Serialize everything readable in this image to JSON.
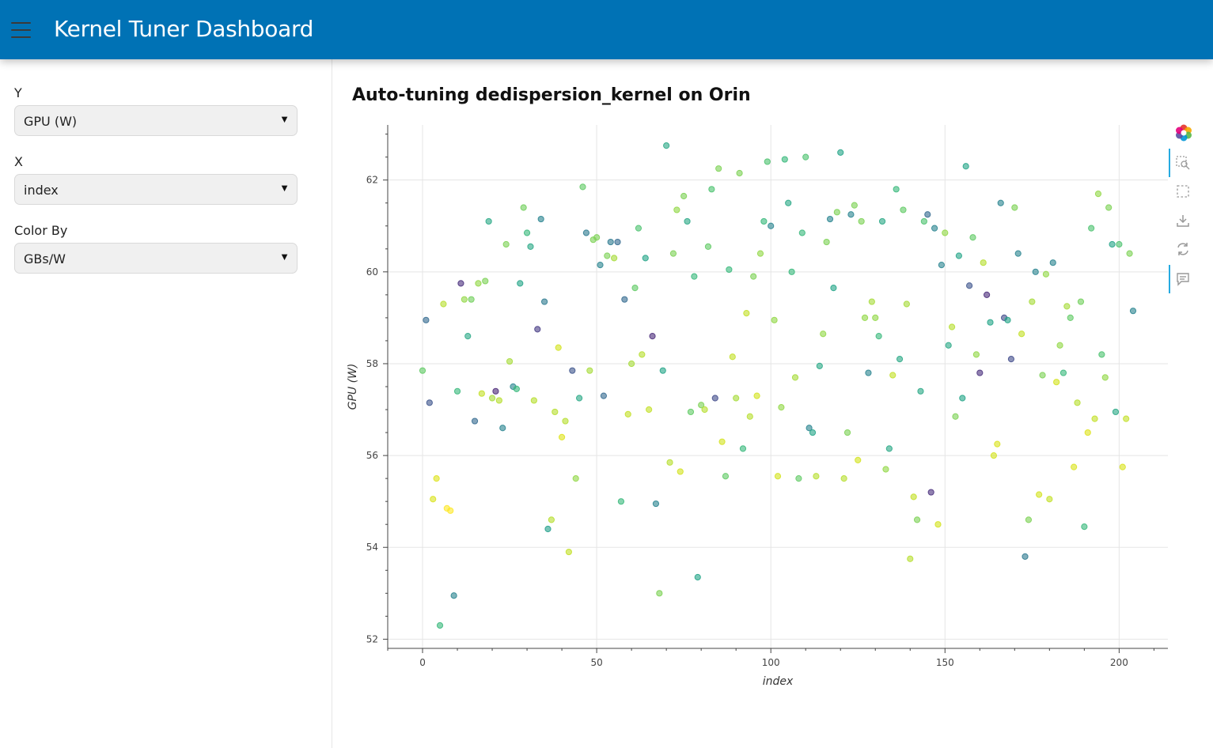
{
  "app": {
    "title": "Kernel Tuner Dashboard"
  },
  "sidebar": {
    "controls": [
      {
        "label": "Y",
        "value": "GPU (W)"
      },
      {
        "label": "X",
        "value": "index"
      },
      {
        "label": "Color By",
        "value": "GBs/W"
      }
    ]
  },
  "toolbar": {
    "tools": [
      "bokeh-logo-icon",
      "box-zoom-icon",
      "box-select-icon",
      "save-icon",
      "reset-icon",
      "hover-icon"
    ]
  },
  "chart_data": {
    "type": "scatter",
    "title": "Auto-tuning dedispersion_kernel on Orin",
    "xlabel": "index",
    "ylabel": "GPU (W)",
    "xlim": [
      -10,
      214
    ],
    "ylim": [
      51.8,
      63.2
    ],
    "xticks": [
      0,
      50,
      100,
      150,
      200
    ],
    "yticks": [
      52,
      54,
      56,
      58,
      60,
      62
    ],
    "grid": true,
    "colormap": "viridis",
    "color_by": "GBs/W",
    "points": [
      [
        0,
        57.85,
        "#5ec962"
      ],
      [
        1,
        58.95,
        "#31688e"
      ],
      [
        2,
        57.15,
        "#3b528b"
      ],
      [
        3,
        55.05,
        "#d8e219"
      ],
      [
        4,
        55.5,
        "#dde318"
      ],
      [
        5,
        52.3,
        "#35b779"
      ],
      [
        6,
        59.3,
        "#b5de2b"
      ],
      [
        7,
        54.85,
        "#fde725"
      ],
      [
        8,
        54.8,
        "#fde725"
      ],
      [
        9,
        52.95,
        "#26828e"
      ],
      [
        10,
        57.4,
        "#35b779"
      ],
      [
        11,
        59.75,
        "#472d7b"
      ],
      [
        12,
        59.4,
        "#90d743"
      ],
      [
        13,
        58.6,
        "#26a784"
      ],
      [
        14,
        59.4,
        "#6ece58"
      ],
      [
        15,
        56.75,
        "#31688e"
      ],
      [
        16,
        59.75,
        "#90d743"
      ],
      [
        17,
        57.35,
        "#c2df23"
      ],
      [
        18,
        59.8,
        "#7ad151"
      ],
      [
        19,
        61.1,
        "#26a784"
      ],
      [
        20,
        57.25,
        "#a5db36"
      ],
      [
        21,
        57.4,
        "#482475"
      ],
      [
        22,
        57.2,
        "#b5de2b"
      ],
      [
        23,
        56.6,
        "#26828e"
      ],
      [
        24,
        60.6,
        "#7ad151"
      ],
      [
        25,
        58.05,
        "#a5db36"
      ],
      [
        26,
        57.5,
        "#26828e"
      ],
      [
        27,
        57.45,
        "#35b779"
      ],
      [
        28,
        59.75,
        "#20a386"
      ],
      [
        29,
        61.4,
        "#6ece58"
      ],
      [
        30,
        60.85,
        "#35b779"
      ],
      [
        31,
        60.55,
        "#26a784"
      ],
      [
        32,
        57.2,
        "#b5de2b"
      ],
      [
        33,
        58.75,
        "#443983"
      ],
      [
        34,
        61.15,
        "#26828e"
      ],
      [
        35,
        59.35,
        "#2a788e"
      ],
      [
        36,
        54.4,
        "#1f9e89"
      ],
      [
        37,
        54.6,
        "#b5de2b"
      ],
      [
        38,
        56.95,
        "#b5de2b"
      ],
      [
        39,
        58.35,
        "#d2e21b"
      ],
      [
        40,
        56.4,
        "#dde318"
      ],
      [
        41,
        56.75,
        "#b5de2b"
      ],
      [
        42,
        53.9,
        "#c2df23"
      ],
      [
        43,
        57.85,
        "#3b528b"
      ],
      [
        44,
        55.5,
        "#90d743"
      ],
      [
        45,
        57.25,
        "#26a784"
      ],
      [
        46,
        61.85,
        "#5ec962"
      ],
      [
        47,
        60.85,
        "#2a788e"
      ],
      [
        48,
        57.85,
        "#a5db36"
      ],
      [
        49,
        60.7,
        "#7ad151"
      ],
      [
        50,
        60.75,
        "#7ad151"
      ],
      [
        51,
        60.15,
        "#26828e"
      ],
      [
        52,
        57.3,
        "#31688e"
      ],
      [
        53,
        60.35,
        "#7ad151"
      ],
      [
        54,
        60.65,
        "#2a788e"
      ],
      [
        55,
        60.3,
        "#a5db36"
      ],
      [
        56,
        60.65,
        "#31688e"
      ],
      [
        57,
        55.0,
        "#35b779"
      ],
      [
        58,
        59.4,
        "#31688e"
      ],
      [
        59,
        56.9,
        "#c2df23"
      ],
      [
        60,
        58.0,
        "#a5db36"
      ],
      [
        61,
        59.65,
        "#5ec962"
      ],
      [
        62,
        60.95,
        "#4ac16d"
      ],
      [
        63,
        58.2,
        "#b5de2b"
      ],
      [
        64,
        60.3,
        "#20a386"
      ],
      [
        65,
        57.0,
        "#c2df23"
      ],
      [
        66,
        58.6,
        "#482878"
      ],
      [
        67,
        54.95,
        "#26828e"
      ],
      [
        68,
        53.0,
        "#7ad151"
      ],
      [
        69,
        57.85,
        "#20a386"
      ],
      [
        70,
        62.75,
        "#26a784"
      ],
      [
        71,
        55.85,
        "#b5de2b"
      ],
      [
        72,
        60.4,
        "#7ad151"
      ],
      [
        73,
        61.35,
        "#90d743"
      ],
      [
        74,
        55.65,
        "#d2e21b"
      ],
      [
        75,
        61.65,
        "#7ad151"
      ],
      [
        76,
        61.1,
        "#26a784"
      ],
      [
        77,
        56.95,
        "#5ec962"
      ],
      [
        78,
        59.9,
        "#35b779"
      ],
      [
        79,
        53.35,
        "#20a386"
      ],
      [
        80,
        57.1,
        "#7ad151"
      ],
      [
        81,
        57.0,
        "#b5de2b"
      ],
      [
        82,
        60.55,
        "#5ec962"
      ],
      [
        83,
        61.8,
        "#4ac16d"
      ],
      [
        84,
        57.25,
        "#3e4989"
      ],
      [
        85,
        62.25,
        "#7ad151"
      ],
      [
        86,
        56.3,
        "#d2e21b"
      ],
      [
        87,
        55.55,
        "#5ec962"
      ],
      [
        88,
        60.05,
        "#35b779"
      ],
      [
        89,
        58.15,
        "#c2df23"
      ],
      [
        90,
        57.25,
        "#a5db36"
      ],
      [
        91,
        62.15,
        "#7ad151"
      ],
      [
        92,
        56.15,
        "#35b779"
      ],
      [
        93,
        59.1,
        "#c2df23"
      ],
      [
        94,
        56.85,
        "#b5de2b"
      ],
      [
        95,
        59.9,
        "#7ad151"
      ],
      [
        96,
        57.3,
        "#d2e21b"
      ],
      [
        97,
        60.4,
        "#90d743"
      ],
      [
        98,
        61.1,
        "#35b779"
      ],
      [
        99,
        62.4,
        "#4ac16d"
      ],
      [
        100,
        61.0,
        "#26828e"
      ],
      [
        101,
        58.95,
        "#90d743"
      ],
      [
        102,
        55.55,
        "#d2e21b"
      ],
      [
        103,
        57.05,
        "#90d743"
      ],
      [
        104,
        62.45,
        "#35b779"
      ],
      [
        105,
        61.5,
        "#26a784"
      ],
      [
        106,
        60.0,
        "#35b779"
      ],
      [
        107,
        57.7,
        "#a5db36"
      ],
      [
        108,
        55.5,
        "#5ec962"
      ],
      [
        109,
        60.85,
        "#35b779"
      ],
      [
        110,
        62.5,
        "#4ac16d"
      ],
      [
        111,
        56.6,
        "#26828e"
      ],
      [
        112,
        56.5,
        "#20a386"
      ],
      [
        113,
        55.55,
        "#b5de2b"
      ],
      [
        114,
        57.95,
        "#26a784"
      ],
      [
        115,
        58.65,
        "#90d743"
      ],
      [
        116,
        60.65,
        "#7ad151"
      ],
      [
        117,
        61.15,
        "#26828e"
      ],
      [
        118,
        59.65,
        "#20a386"
      ],
      [
        119,
        61.3,
        "#7ad151"
      ],
      [
        120,
        62.6,
        "#20a386"
      ],
      [
        121,
        55.5,
        "#b5de2b"
      ],
      [
        122,
        56.5,
        "#7ad151"
      ],
      [
        123,
        61.25,
        "#26828e"
      ],
      [
        124,
        61.45,
        "#7ad151"
      ],
      [
        125,
        55.9,
        "#d2e21b"
      ],
      [
        126,
        61.1,
        "#7ad151"
      ],
      [
        127,
        59.0,
        "#90d743"
      ],
      [
        128,
        57.8,
        "#26828e"
      ],
      [
        129,
        59.35,
        "#a5db36"
      ],
      [
        130,
        59.0,
        "#90d743"
      ],
      [
        131,
        58.6,
        "#35b779"
      ],
      [
        132,
        61.1,
        "#26a784"
      ],
      [
        133,
        55.7,
        "#90d743"
      ],
      [
        134,
        56.15,
        "#26a784"
      ],
      [
        135,
        57.75,
        "#c2df23"
      ],
      [
        136,
        61.8,
        "#35b779"
      ],
      [
        137,
        58.1,
        "#26a784"
      ],
      [
        138,
        61.35,
        "#5ec962"
      ],
      [
        139,
        59.3,
        "#a5db36"
      ],
      [
        140,
        53.75,
        "#b5de2b"
      ],
      [
        141,
        55.1,
        "#c2df23"
      ],
      [
        142,
        54.6,
        "#7ad151"
      ],
      [
        143,
        57.4,
        "#26a784"
      ],
      [
        144,
        61.1,
        "#4ac16d"
      ],
      [
        145,
        61.25,
        "#31688e"
      ],
      [
        146,
        55.2,
        "#472d7b"
      ],
      [
        147,
        60.95,
        "#26828e"
      ],
      [
        148,
        54.5,
        "#d2e21b"
      ],
      [
        149,
        60.15,
        "#26828e"
      ],
      [
        150,
        60.85,
        "#90d743"
      ],
      [
        151,
        58.4,
        "#26a784"
      ],
      [
        152,
        58.8,
        "#b5de2b"
      ],
      [
        153,
        56.85,
        "#7ad151"
      ],
      [
        154,
        60.35,
        "#20a386"
      ],
      [
        155,
        57.25,
        "#20a386"
      ],
      [
        156,
        62.3,
        "#20a386"
      ],
      [
        157,
        59.7,
        "#3b528b"
      ],
      [
        158,
        60.75,
        "#5ec962"
      ],
      [
        159,
        58.2,
        "#90d743"
      ],
      [
        160,
        57.8,
        "#472d7b"
      ],
      [
        161,
        60.2,
        "#b5de2b"
      ],
      [
        162,
        59.5,
        "#482878"
      ],
      [
        163,
        58.9,
        "#20a386"
      ],
      [
        164,
        56.0,
        "#d2e21b"
      ],
      [
        165,
        56.25,
        "#d8e219"
      ],
      [
        166,
        61.5,
        "#26828e"
      ],
      [
        167,
        59.0,
        "#3e4989"
      ],
      [
        168,
        58.95,
        "#20a386"
      ],
      [
        169,
        58.1,
        "#3e4989"
      ],
      [
        170,
        61.4,
        "#7ad151"
      ],
      [
        171,
        60.4,
        "#26828e"
      ],
      [
        172,
        58.65,
        "#c2df23"
      ],
      [
        173,
        53.8,
        "#2a788e"
      ],
      [
        174,
        54.6,
        "#7ad151"
      ],
      [
        175,
        59.35,
        "#a5db36"
      ],
      [
        176,
        60.0,
        "#26828e"
      ],
      [
        177,
        55.15,
        "#d2e21b"
      ],
      [
        178,
        57.75,
        "#7ad151"
      ],
      [
        179,
        59.95,
        "#90d743"
      ],
      [
        180,
        55.05,
        "#c2df23"
      ],
      [
        181,
        60.2,
        "#26828e"
      ],
      [
        182,
        57.6,
        "#d2e21b"
      ],
      [
        183,
        58.4,
        "#90d743"
      ],
      [
        184,
        57.8,
        "#35b779"
      ],
      [
        185,
        59.25,
        "#a5db36"
      ],
      [
        186,
        59.0,
        "#5ec962"
      ],
      [
        187,
        55.75,
        "#d8e219"
      ],
      [
        188,
        57.15,
        "#b5de2b"
      ],
      [
        189,
        59.35,
        "#6ece58"
      ],
      [
        190,
        54.45,
        "#35b779"
      ],
      [
        191,
        56.5,
        "#dde318"
      ],
      [
        192,
        60.95,
        "#4ac16d"
      ],
      [
        193,
        56.8,
        "#c2df23"
      ],
      [
        194,
        61.7,
        "#90d743"
      ],
      [
        195,
        58.2,
        "#4ac16d"
      ],
      [
        196,
        57.7,
        "#90d743"
      ],
      [
        197,
        61.4,
        "#7ad151"
      ],
      [
        198,
        60.6,
        "#20a386"
      ],
      [
        199,
        56.95,
        "#26a784"
      ],
      [
        200,
        60.6,
        "#4ac16d"
      ],
      [
        201,
        55.75,
        "#d8e219"
      ],
      [
        202,
        56.8,
        "#c2df23"
      ],
      [
        203,
        60.4,
        "#7ad151"
      ],
      [
        204,
        59.15,
        "#26828e"
      ]
    ]
  }
}
